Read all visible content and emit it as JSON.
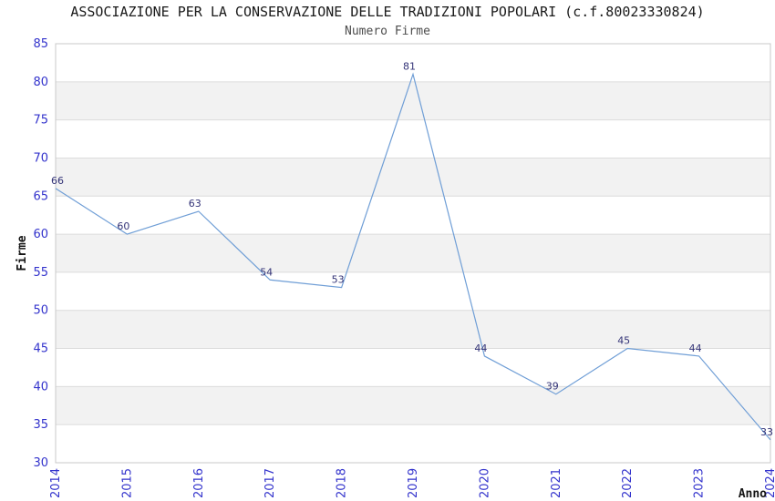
{
  "chart_data": {
    "type": "line",
    "title": "ASSOCIAZIONE PER LA CONSERVAZIONE DELLE TRADIZIONI POPOLARI (c.f.80023330824)",
    "subtitle": "Numero Firme",
    "xlabel": "Anno",
    "ylabel": "Firme",
    "categories": [
      "2014",
      "2015",
      "2016",
      "2017",
      "2018",
      "2019",
      "2020",
      "2021",
      "2022",
      "2023",
      "2024"
    ],
    "values": [
      66,
      60,
      63,
      54,
      53,
      81,
      44,
      39,
      45,
      44,
      33
    ],
    "ylim": [
      30,
      85
    ],
    "ytick_step": 5,
    "yticks": [
      30,
      35,
      40,
      45,
      50,
      55,
      60,
      65,
      70,
      75,
      80,
      85
    ],
    "grid": "horizontal-with-alternating-bands",
    "legend": "none",
    "point_labels_visible": true,
    "colors": {
      "line": "#6f9ed6",
      "tick_label": "#3333cc",
      "point_label": "#333377",
      "band_fill": "#f2f2f2",
      "gridline": "#dcdcdc",
      "plot_border": "#c9c9c9",
      "title": "#1a1a1a",
      "subtitle": "#4d4d4d",
      "axis_title": "#141414",
      "background": "#ffffff"
    }
  }
}
